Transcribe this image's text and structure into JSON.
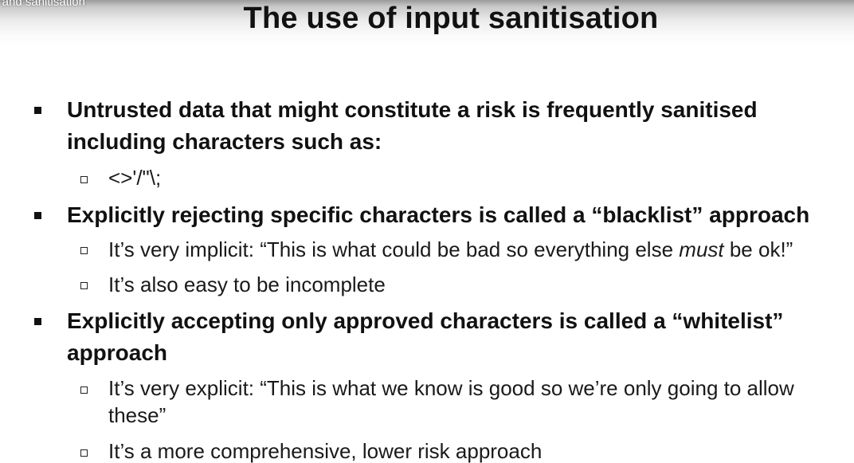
{
  "video": {
    "title_fragment": "ta and sanitisation"
  },
  "slide": {
    "title": "The use of input sanitisation",
    "bullets": [
      {
        "lines": [
          "Untrusted data that might constitute a risk is frequently sanitised",
          "including characters such as:"
        ],
        "subs": [
          {
            "lines": [
              "<>'/\"\\;"
            ]
          }
        ]
      },
      {
        "lines": [
          "Explicitly rejecting specific characters is called a “blacklist” approach"
        ],
        "subs": [
          {
            "before": "It’s very implicit: “This is what could be bad so everything else ",
            "emphasis": "must",
            "after": " be ok!”"
          },
          {
            "lines": [
              "It’s also easy to be incomplete"
            ]
          }
        ]
      },
      {
        "lines": [
          "Explicitly accepting only approved characters is called a “whitelist”",
          "approach"
        ],
        "subs": [
          {
            "lines": [
              "It’s very explicit: “This is what we know is good so we’re only going to allow",
              "these”"
            ]
          },
          {
            "lines": [
              "It’s a more comprehensive, lower risk approach"
            ]
          }
        ]
      }
    ]
  },
  "colors": {
    "text": "#111111",
    "background": "#ffffff",
    "top_gradient": "#9a9a9a"
  }
}
